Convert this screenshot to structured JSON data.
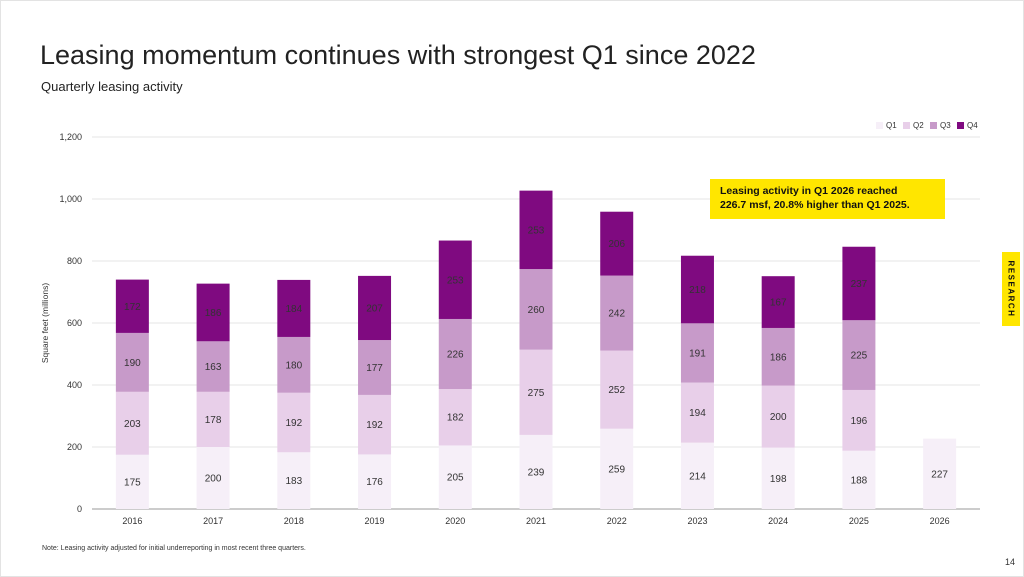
{
  "page": {
    "title": "Leasing momentum continues with strongest Q1 since 2022",
    "subtitle": "Quarterly leasing activity",
    "note": "Note: Leasing activity adjusted for initial underreporting in most recent three quarters.",
    "page_number": "14",
    "side_tab": "RESEARCH",
    "callout_line1": "Leasing activity in Q1 2026 reached",
    "callout_line2": "226.7 msf, 20.8% higher than Q1 2025."
  },
  "chart_data": {
    "type": "bar",
    "stacked": true,
    "title": "",
    "xlabel": "",
    "ylabel": "Square feet (millions)",
    "ylim": [
      0,
      1200
    ],
    "yticks": [
      0,
      200,
      400,
      600,
      800,
      1000,
      1200
    ],
    "ytick_labels": [
      "0",
      "200",
      "400",
      "600",
      "800",
      "1,000",
      "1,200"
    ],
    "grid": true,
    "legend_position": "top-right",
    "categories": [
      "2016",
      "2017",
      "2018",
      "2019",
      "2020",
      "2021",
      "2022",
      "2023",
      "2024",
      "2025",
      "2026"
    ],
    "series": [
      {
        "name": "Q1",
        "color": "#f6eff8",
        "values": [
          175,
          200,
          183,
          176,
          205,
          239,
          259,
          214,
          198,
          188,
          227
        ]
      },
      {
        "name": "Q2",
        "color": "#e8cfe9",
        "values": [
          203,
          178,
          192,
          192,
          182,
          275,
          252,
          194,
          200,
          196,
          null
        ]
      },
      {
        "name": "Q3",
        "color": "#c79ac9",
        "values": [
          190,
          163,
          180,
          177,
          226,
          260,
          242,
          191,
          186,
          225,
          null
        ]
      },
      {
        "name": "Q4",
        "color": "#7f0a80",
        "values": [
          172,
          186,
          184,
          207,
          253,
          253,
          206,
          218,
          167,
          237,
          null
        ]
      }
    ]
  }
}
